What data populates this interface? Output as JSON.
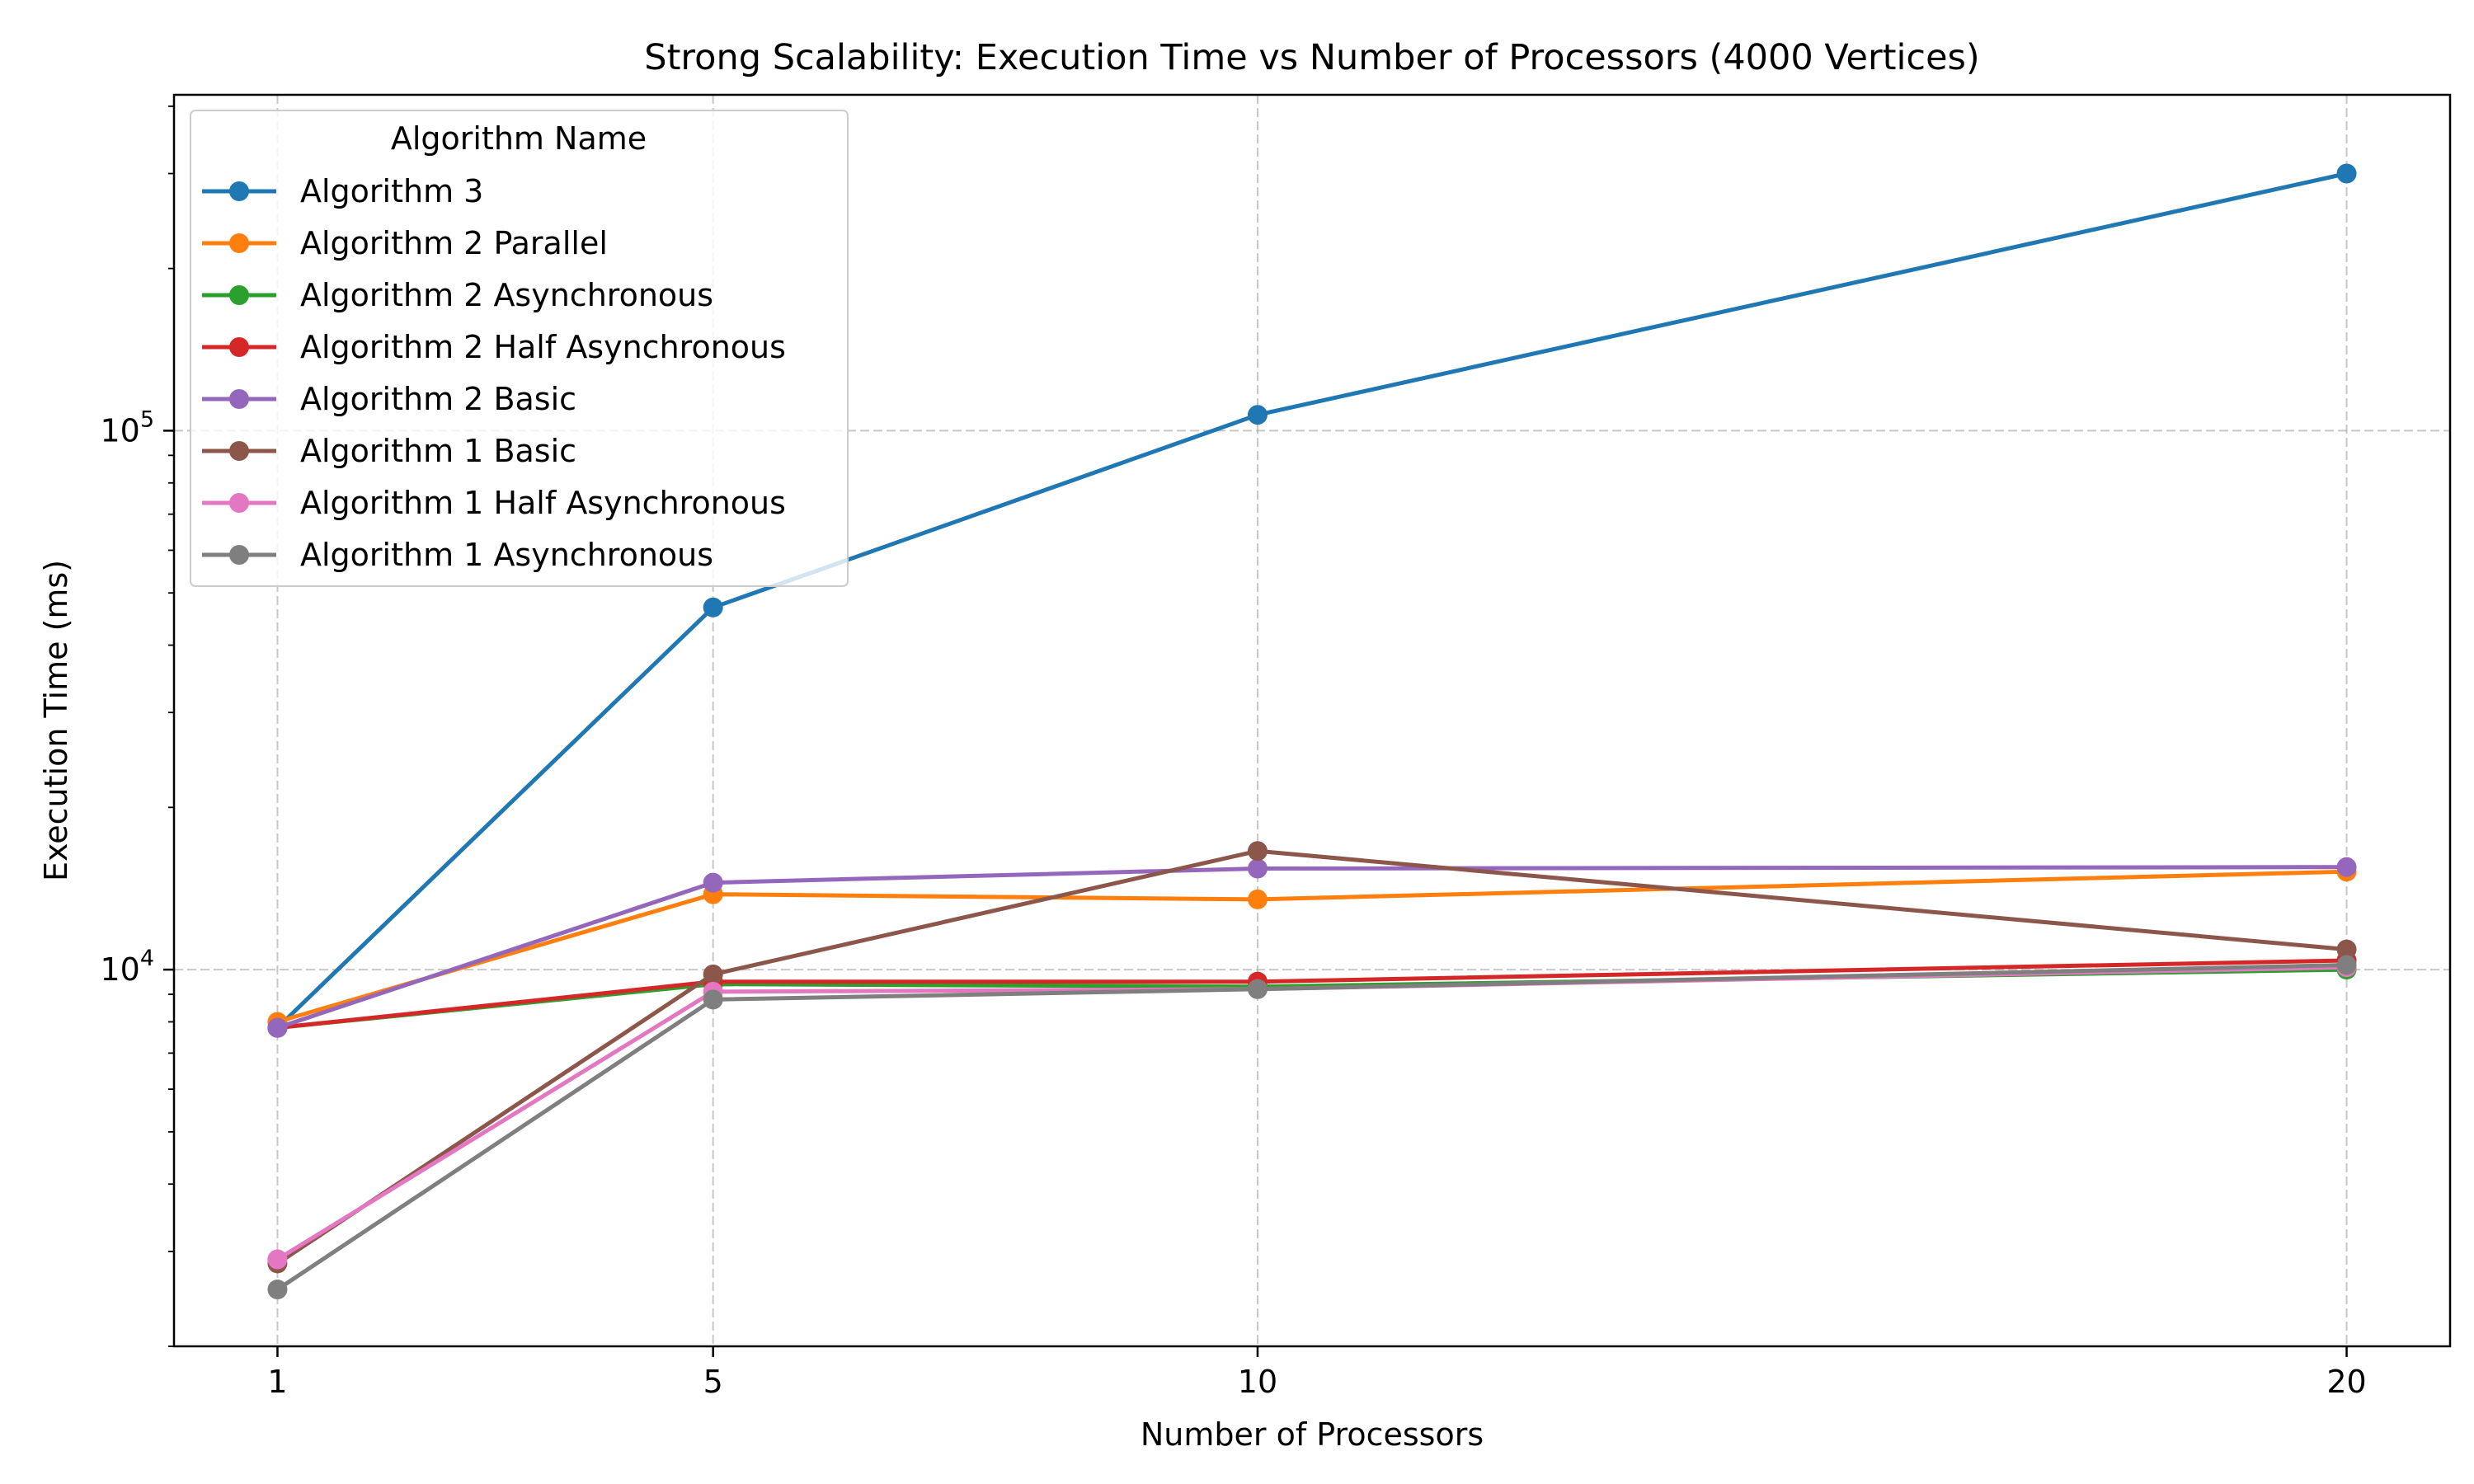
{
  "chart_data": {
    "type": "line",
    "title": "Strong Scalability: Execution Time vs Number of Processors (4000 Vertices)",
    "xlabel": "Number of Processors",
    "ylabel": "Execution Time (ms)",
    "x": [
      1,
      5,
      10,
      20
    ],
    "x_ticks": [
      "1",
      "5",
      "10",
      "20"
    ],
    "xlim": [
      0.05,
      20.95
    ],
    "y_scale": "log",
    "ylim": [
      2000,
      420000
    ],
    "y_ticks": [
      {
        "value": 10000,
        "base": "10",
        "exp": "4"
      },
      {
        "value": 100000,
        "base": "10",
        "exp": "5"
      }
    ],
    "grid": true,
    "legend": {
      "title": "Algorithm Name",
      "placement": "top-left"
    },
    "series": [
      {
        "name": "Algorithm 3",
        "color": "#1f77b4",
        "values": [
          7800,
          47000,
          107000,
          300000
        ]
      },
      {
        "name": "Algorithm 2 Parallel",
        "color": "#ff7f0e",
        "values": [
          8000,
          13800,
          13500,
          15200
        ]
      },
      {
        "name": "Algorithm 2 Asynchronous",
        "color": "#2ca02c",
        "values": [
          7800,
          9400,
          9300,
          10000
        ]
      },
      {
        "name": "Algorithm 2 Half Asynchronous",
        "color": "#d62728",
        "values": [
          7800,
          9500,
          9500,
          10400
        ]
      },
      {
        "name": "Algorithm 2 Basic",
        "color": "#9467bd",
        "values": [
          7800,
          14500,
          15400,
          15500
        ]
      },
      {
        "name": "Algorithm 1 Basic",
        "color": "#8c564b",
        "values": [
          2850,
          9800,
          16600,
          10900
        ]
      },
      {
        "name": "Algorithm 1 Half Asynchronous",
        "color": "#e377c2",
        "values": [
          2900,
          9100,
          9200,
          10100
        ]
      },
      {
        "name": "Algorithm 1 Asynchronous",
        "color": "#7f7f7f",
        "values": [
          2550,
          8800,
          9200,
          10200
        ]
      }
    ]
  }
}
